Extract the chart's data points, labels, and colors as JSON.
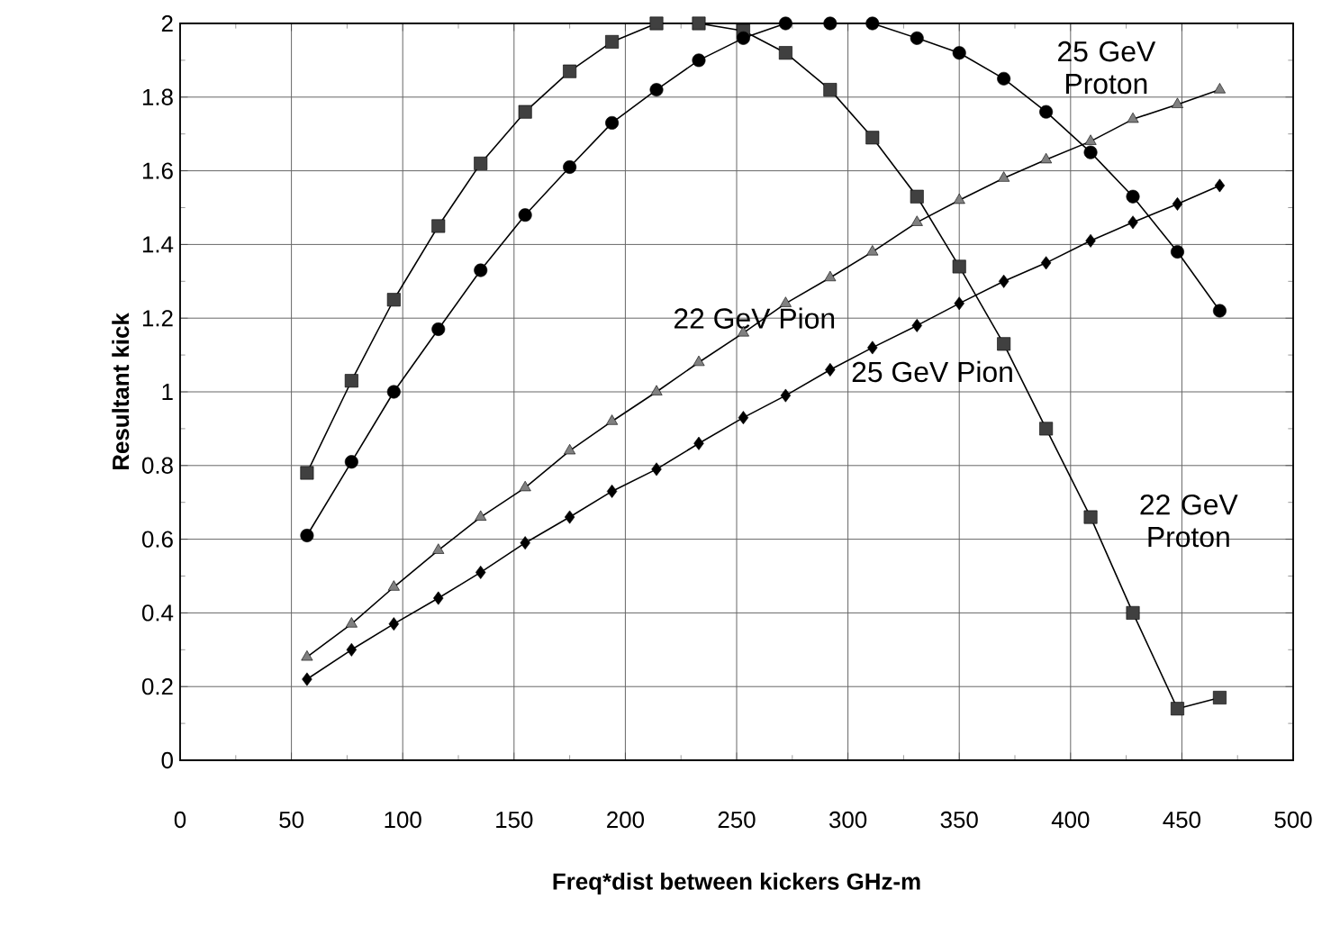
{
  "chart_data": {
    "type": "line",
    "xlabel": "Freq*dist between kickers GHz-m",
    "ylabel": "Resultant kick",
    "x": [
      57,
      77,
      96,
      116,
      135,
      155,
      175,
      194,
      214,
      233,
      253,
      272,
      292,
      311,
      331,
      350,
      370,
      389,
      409,
      428,
      448,
      467
    ],
    "series": [
      {
        "name": "22 GeV Proton",
        "color": "#404040",
        "marker": "square",
        "values": [
          0.78,
          1.03,
          1.25,
          1.45,
          1.62,
          1.76,
          1.87,
          1.95,
          2.0,
          2.0,
          1.98,
          1.92,
          1.82,
          1.69,
          1.53,
          1.34,
          1.13,
          0.9,
          0.66,
          0.4,
          0.14,
          0.17
        ]
      },
      {
        "name": "25 GeV Proton",
        "color": "#000000",
        "marker": "circle",
        "values": [
          0.61,
          0.81,
          1.0,
          1.17,
          1.33,
          1.48,
          1.61,
          1.73,
          1.82,
          1.9,
          1.96,
          2.0,
          2.0,
          2.0,
          1.96,
          1.92,
          1.85,
          1.76,
          1.65,
          1.53,
          1.38,
          1.22
        ]
      },
      {
        "name": "22 GeV Pion",
        "color": "#808080",
        "marker": "triangle",
        "values": [
          0.28,
          0.37,
          0.47,
          0.57,
          0.66,
          0.74,
          0.84,
          0.92,
          1.0,
          1.08,
          1.16,
          1.24,
          1.31,
          1.38,
          1.46,
          1.52,
          1.58,
          1.63,
          1.68,
          1.74,
          1.78,
          1.82
        ]
      },
      {
        "name": "25 GeV Pion",
        "color": "#000000",
        "marker": "diamond",
        "values": [
          0.22,
          0.3,
          0.37,
          0.44,
          0.51,
          0.59,
          0.66,
          0.73,
          0.79,
          0.86,
          0.93,
          0.99,
          1.06,
          1.12,
          1.18,
          1.24,
          1.3,
          1.35,
          1.41,
          1.46,
          1.51,
          1.56
        ]
      }
    ],
    "xlim": [
      0,
      500
    ],
    "xticks": [
      0,
      50,
      100,
      150,
      200,
      250,
      300,
      350,
      400,
      450,
      500
    ],
    "ylim": [
      0,
      2
    ],
    "yticks": [
      0,
      0.2,
      0.4,
      0.6,
      0.8,
      1,
      1.2,
      1.4,
      1.6,
      1.8,
      2
    ],
    "grid": true,
    "line_style": "solid"
  }
}
